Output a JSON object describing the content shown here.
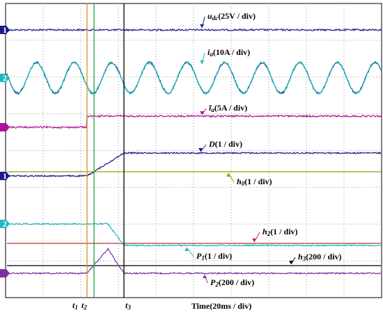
{
  "traces": [
    {
      "symbol": "u",
      "sub": "dc",
      "scale": "(25V / div)"
    },
    {
      "symbol": "i",
      "sub": "a",
      "scale": "(10A / div)"
    },
    {
      "symbol": "ĩ",
      "sub": "a",
      "scale": "(5A / div)"
    },
    {
      "symbol": "D",
      "scale": "(1 / div)"
    },
    {
      "symbol": "h",
      "sub": "0",
      "scale": "(1 / div)"
    },
    {
      "symbol": "h",
      "sub": "2",
      "scale": "(1 / div)"
    },
    {
      "symbol": "P",
      "sub": "1",
      "scale": "(1 / div)"
    },
    {
      "symbol": "h",
      "sub": "3",
      "scale": "(200 / div)"
    },
    {
      "symbol": "P",
      "sub": "2",
      "scale": "(200 / div)"
    }
  ],
  "channel_markers": [
    "1",
    "2",
    "1",
    "2"
  ],
  "cursors": [
    {
      "symbol": "t",
      "sub": "1"
    },
    {
      "symbol": "t",
      "sub": "2"
    },
    {
      "symbol": "t",
      "sub": "3"
    }
  ],
  "x_axis_label": "Time(20ms / div)"
}
